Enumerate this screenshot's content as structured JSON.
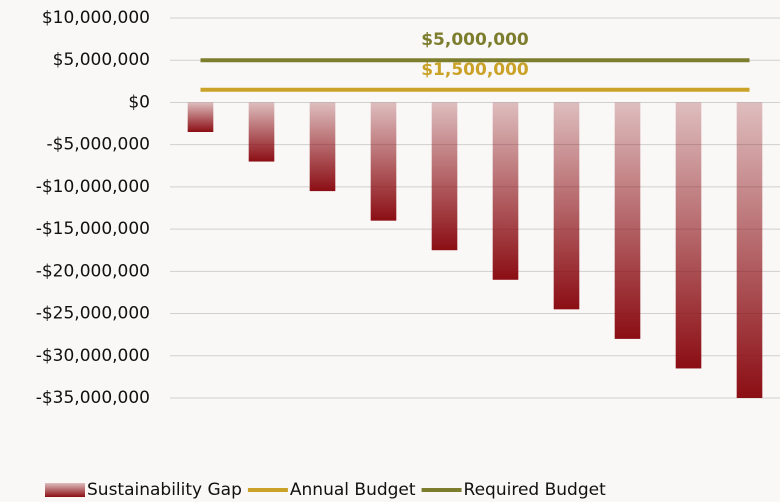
{
  "chart_data": {
    "type": "bar",
    "categories": [
      null,
      null,
      null,
      null,
      null,
      null,
      null,
      null,
      null,
      null
    ],
    "series": [
      {
        "name": "Sustainability Gap",
        "type": "bar",
        "color": "#8b0e14",
        "values": [
          -3500000,
          -7000000,
          -10500000,
          -14000000,
          -17500000,
          -21000000,
          -24500000,
          -28000000,
          -31500000,
          -35000000
        ]
      },
      {
        "name": "Annual Budget",
        "type": "line",
        "color": "#c9a227",
        "values": [
          1500000,
          1500000,
          1500000,
          1500000,
          1500000,
          1500000,
          1500000,
          1500000,
          1500000,
          1500000
        ],
        "value_labels": [
          null,
          null,
          null,
          null,
          "$1,500,000",
          null,
          null,
          null,
          null,
          null
        ]
      },
      {
        "name": "Required Budget",
        "type": "line",
        "color": "#7d7d2e",
        "values": [
          5000000,
          5000000,
          5000000,
          5000000,
          5000000,
          5000000,
          5000000,
          5000000,
          5000000,
          5000000
        ],
        "value_labels": [
          null,
          null,
          null,
          null,
          "$5,000,000",
          null,
          null,
          null,
          null,
          null
        ]
      }
    ],
    "ylim": [
      -35000000,
      10000000
    ],
    "yticks": [
      {
        "value": -35000000,
        "label": "-$35,000,000"
      },
      {
        "value": -30000000,
        "label": "-$30,000,000"
      },
      {
        "value": -25000000,
        "label": "-$25,000,000"
      },
      {
        "value": -20000000,
        "label": "-$20,000,000"
      },
      {
        "value": -15000000,
        "label": "-$15,000,000"
      },
      {
        "value": -10000000,
        "label": "-$10,000,000"
      },
      {
        "value": -5000000,
        "label": "-$5,000,000"
      },
      {
        "value": 0,
        "label": "$0"
      },
      {
        "value": 5000000,
        "label": "$5,000,000"
      },
      {
        "value": 10000000,
        "label": "$10,000,000"
      }
    ],
    "grid": true
  }
}
